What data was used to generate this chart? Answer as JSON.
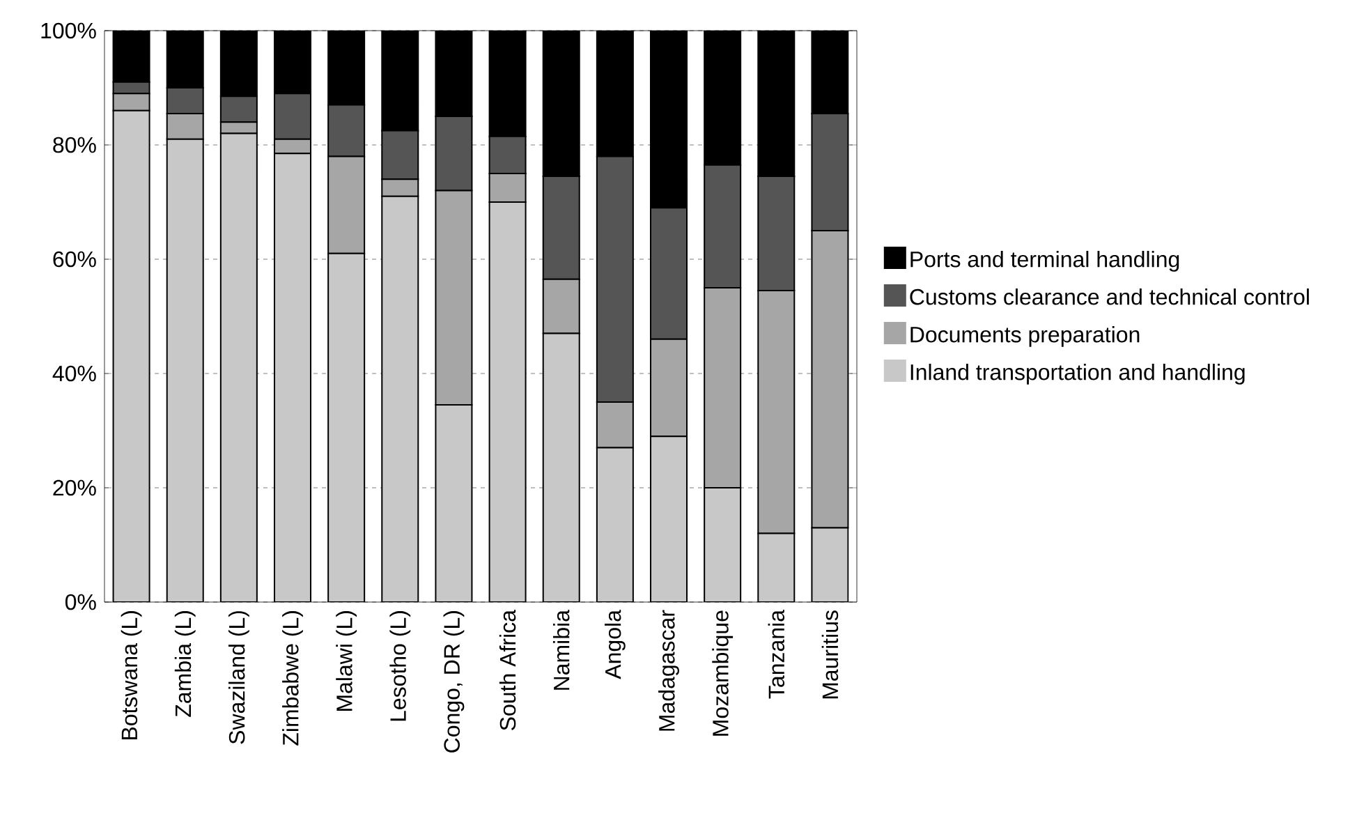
{
  "chart_data": {
    "type": "bar",
    "stacked": true,
    "categories": [
      "Botswana (L)",
      "Zambia (L)",
      "Swaziland (L)",
      "Zimbabwe (L)",
      "Malawi (L)",
      "Lesotho (L)",
      "Congo, DR (L)",
      "South Africa",
      "Namibia",
      "Angola",
      "Madagascar",
      "Mozambique",
      "Tanzania",
      "Mauritius"
    ],
    "series": [
      {
        "name": "Inland transportation and handling",
        "color": "#c8c8c8",
        "values": [
          86,
          81,
          82,
          78.5,
          61,
          71,
          34.5,
          70,
          47,
          27,
          29,
          20,
          12,
          13
        ]
      },
      {
        "name": "Documents preparation",
        "color": "#a6a6a6",
        "values": [
          3,
          4.5,
          2,
          2.5,
          17,
          3,
          37.5,
          5,
          9.5,
          8,
          17,
          35,
          42.5,
          52
        ]
      },
      {
        "name": "Customs clearance and technical control",
        "color": "#555555",
        "values": [
          2,
          4.5,
          4.5,
          8,
          9,
          8.5,
          13,
          6.5,
          18,
          43,
          23,
          21.5,
          20,
          20.5
        ]
      },
      {
        "name": "Ports and terminal handling",
        "color": "#000000",
        "values": [
          9,
          10,
          11.5,
          11,
          13,
          17.5,
          15,
          18.5,
          25.5,
          22,
          31,
          23.5,
          25.5,
          14.5
        ]
      }
    ],
    "ylim": [
      0,
      100
    ],
    "yticks": [
      {
        "value": 0,
        "label": "0%"
      },
      {
        "value": 20,
        "label": "20%"
      },
      {
        "value": 40,
        "label": "40%"
      },
      {
        "value": 60,
        "label": "60%"
      },
      {
        "value": 80,
        "label": "80%"
      },
      {
        "value": 100,
        "label": "100%"
      }
    ],
    "grid": "y",
    "legend": "right"
  }
}
